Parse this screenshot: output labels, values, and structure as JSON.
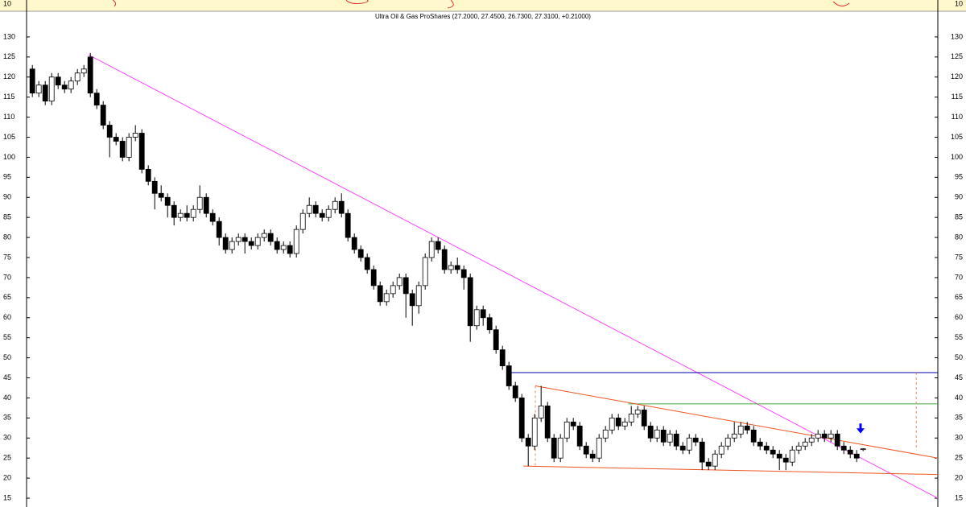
{
  "chart_data": {
    "type": "candlestick",
    "title": "Ultra Oil & Gas ProShares (27.2000, 27.4500, 26.7300, 27.3100, +0.21000)",
    "xlim": [
      -0.9,
      140.6
    ],
    "ylim": [
      12.8,
      136.2
    ],
    "yticks": [
      15,
      20,
      25,
      30,
      35,
      40,
      45,
      50,
      55,
      60,
      65,
      70,
      75,
      80,
      85,
      90,
      95,
      100,
      105,
      110,
      115,
      120,
      125,
      130
    ],
    "top_panel_yticks": [
      10
    ],
    "up_color": "#ffffff",
    "down_color": "#000000",
    "ohlc": [
      [
        122,
        123,
        115,
        116
      ],
      [
        116,
        119,
        115,
        118
      ],
      [
        118,
        119,
        113,
        114
      ],
      [
        114,
        121,
        113,
        120
      ],
      [
        120,
        121,
        117,
        118
      ],
      [
        118,
        119,
        116,
        117
      ],
      [
        117,
        120,
        116,
        119
      ],
      [
        119,
        122,
        118,
        121
      ],
      [
        121,
        123,
        120,
        122
      ],
      [
        125,
        126,
        115,
        116
      ],
      [
        116,
        117,
        112,
        113
      ],
      [
        113,
        114,
        107,
        108
      ],
      [
        108,
        109,
        100,
        105
      ],
      [
        105,
        106,
        103,
        104
      ],
      [
        104,
        105,
        99,
        100
      ],
      [
        100,
        106,
        99,
        105
      ],
      [
        105,
        108,
        104,
        106
      ],
      [
        106,
        107,
        96,
        97
      ],
      [
        97,
        98,
        93,
        94
      ],
      [
        94,
        95,
        87,
        91
      ],
      [
        91,
        93,
        89,
        90
      ],
      [
        90,
        91,
        85,
        88
      ],
      [
        88,
        89,
        83,
        85
      ],
      [
        85,
        87,
        84,
        86
      ],
      [
        86,
        88,
        84,
        85
      ],
      [
        85,
        88,
        84,
        87
      ],
      [
        87,
        93,
        86,
        90
      ],
      [
        90,
        91,
        85,
        86
      ],
      [
        86,
        87,
        83,
        84
      ],
      [
        84,
        85,
        78,
        80
      ],
      [
        80,
        81,
        76,
        77
      ],
      [
        77,
        80,
        76,
        79
      ],
      [
        79,
        81,
        78,
        80
      ],
      [
        80,
        81,
        76,
        79
      ],
      [
        79,
        80,
        77,
        78
      ],
      [
        78,
        81,
        77,
        80
      ],
      [
        80,
        82,
        79,
        81
      ],
      [
        81,
        82,
        78,
        79
      ],
      [
        79,
        80,
        76,
        77
      ],
      [
        77,
        79,
        76,
        78
      ],
      [
        78,
        79,
        75,
        76
      ],
      [
        76,
        83,
        75,
        82
      ],
      [
        82,
        87,
        81,
        86
      ],
      [
        86,
        90,
        85,
        88
      ],
      [
        88,
        89,
        85,
        86
      ],
      [
        86,
        87,
        84,
        85
      ],
      [
        85,
        88,
        84,
        87
      ],
      [
        87,
        90,
        86,
        89
      ],
      [
        89,
        91,
        85,
        86
      ],
      [
        86,
        87,
        79,
        80
      ],
      [
        80,
        81,
        76,
        77
      ],
      [
        77,
        78,
        74,
        75
      ],
      [
        75,
        76,
        71,
        72
      ],
      [
        72,
        73,
        67,
        68
      ],
      [
        68,
        69,
        63,
        64
      ],
      [
        64,
        67,
        63,
        66
      ],
      [
        66,
        69,
        65,
        68
      ],
      [
        68,
        71,
        67,
        70
      ],
      [
        70,
        71,
        60,
        66
      ],
      [
        66,
        67,
        58,
        63
      ],
      [
        63,
        69,
        61,
        68
      ],
      [
        68,
        76,
        67,
        75
      ],
      [
        75,
        80,
        74,
        79
      ],
      [
        79,
        80,
        76,
        77
      ],
      [
        77,
        78,
        71,
        72
      ],
      [
        72,
        74,
        71,
        73
      ],
      [
        73,
        75,
        71,
        72
      ],
      [
        72,
        73,
        67,
        70
      ],
      [
        70,
        71,
        54,
        58
      ],
      [
        58,
        63,
        57,
        62
      ],
      [
        62,
        63,
        58,
        60
      ],
      [
        60,
        61,
        56,
        57
      ],
      [
        57,
        58,
        51,
        52
      ],
      [
        52,
        53,
        47,
        48
      ],
      [
        48,
        49,
        42,
        43
      ],
      [
        43,
        44,
        39,
        40
      ],
      [
        40,
        41,
        29,
        30
      ],
      [
        30,
        31,
        23,
        28
      ],
      [
        28,
        36,
        27,
        35
      ],
      [
        35,
        43,
        34,
        38
      ],
      [
        38,
        39,
        29,
        30
      ],
      [
        30,
        31,
        24,
        25
      ],
      [
        25,
        31,
        24,
        30
      ],
      [
        30,
        35,
        29,
        34
      ],
      [
        34,
        35,
        32,
        33
      ],
      [
        33,
        34,
        27,
        28
      ],
      [
        28,
        29,
        25,
        26
      ],
      [
        26,
        27,
        24,
        25
      ],
      [
        25,
        31,
        24,
        30
      ],
      [
        30,
        33,
        29,
        32
      ],
      [
        32,
        36,
        31,
        35
      ],
      [
        35,
        36,
        32,
        33
      ],
      [
        33,
        35,
        32,
        34
      ],
      [
        34,
        38,
        33,
        36
      ],
      [
        36,
        38,
        35,
        37
      ],
      [
        37,
        38,
        32,
        33
      ],
      [
        33,
        34,
        29,
        30
      ],
      [
        30,
        33,
        29,
        32
      ],
      [
        32,
        33,
        28,
        29
      ],
      [
        29,
        32,
        28,
        31
      ],
      [
        31,
        32,
        27,
        28
      ],
      [
        28,
        29,
        26,
        27
      ],
      [
        27,
        31,
        26,
        30
      ],
      [
        30,
        31,
        28,
        29
      ],
      [
        29,
        30,
        22,
        24
      ],
      [
        24,
        25,
        22,
        23
      ],
      [
        23,
        27,
        22,
        26
      ],
      [
        26,
        29,
        25,
        28
      ],
      [
        28,
        31,
        27,
        30
      ],
      [
        30,
        34,
        29,
        31
      ],
      [
        31,
        34,
        30,
        33
      ],
      [
        33,
        34,
        31,
        32
      ],
      [
        32,
        33,
        28,
        29
      ],
      [
        29,
        30,
        27,
        28
      ],
      [
        28,
        29,
        26,
        27
      ],
      [
        27,
        28,
        25,
        26
      ],
      [
        26,
        27,
        22,
        25
      ],
      [
        25,
        26,
        22,
        24
      ],
      [
        24,
        28,
        23,
        27
      ],
      [
        27,
        29,
        26,
        28
      ],
      [
        28,
        30,
        27,
        29
      ],
      [
        29,
        31,
        28,
        30
      ],
      [
        30,
        32,
        29,
        31
      ],
      [
        31,
        32,
        29,
        30
      ],
      [
        30,
        32,
        29,
        31
      ],
      [
        31,
        32,
        27,
        28
      ],
      [
        28,
        29,
        26,
        27
      ],
      [
        27,
        28,
        25,
        26
      ],
      [
        26,
        27,
        24,
        25
      ],
      [
        27.2,
        27.45,
        26.73,
        27.31
      ]
    ],
    "lines": [
      {
        "color": "#ff44ff",
        "x": [
          8.75,
          140.6
        ],
        "y": [
          125.5,
          15
        ]
      },
      {
        "color": "#0000aa",
        "x": [
          74.4,
          140.6
        ],
        "y": [
          46.3,
          46.3
        ]
      },
      {
        "color": "#44aa44",
        "x": [
          92.5,
          140.6
        ],
        "y": [
          38.5,
          38.5
        ]
      },
      {
        "color": "#ee5522",
        "x": [
          78.1,
          140.6
        ],
        "y": [
          43,
          25
        ]
      },
      {
        "color": "#ee5522",
        "x": [
          76.25,
          140.6
        ],
        "y": [
          23,
          20.9
        ]
      },
      {
        "color": "#ee8866",
        "dash": true,
        "x": [
          78.1,
          78.1
        ],
        "y": [
          43,
          23
        ]
      },
      {
        "color": "#ee8866",
        "dash": true,
        "x": [
          137.25,
          137.25
        ],
        "y": [
          46.3,
          27
        ]
      }
    ],
    "markers": [
      {
        "x": 128.6,
        "y": 31.5,
        "color": "#0000ff"
      }
    ]
  }
}
